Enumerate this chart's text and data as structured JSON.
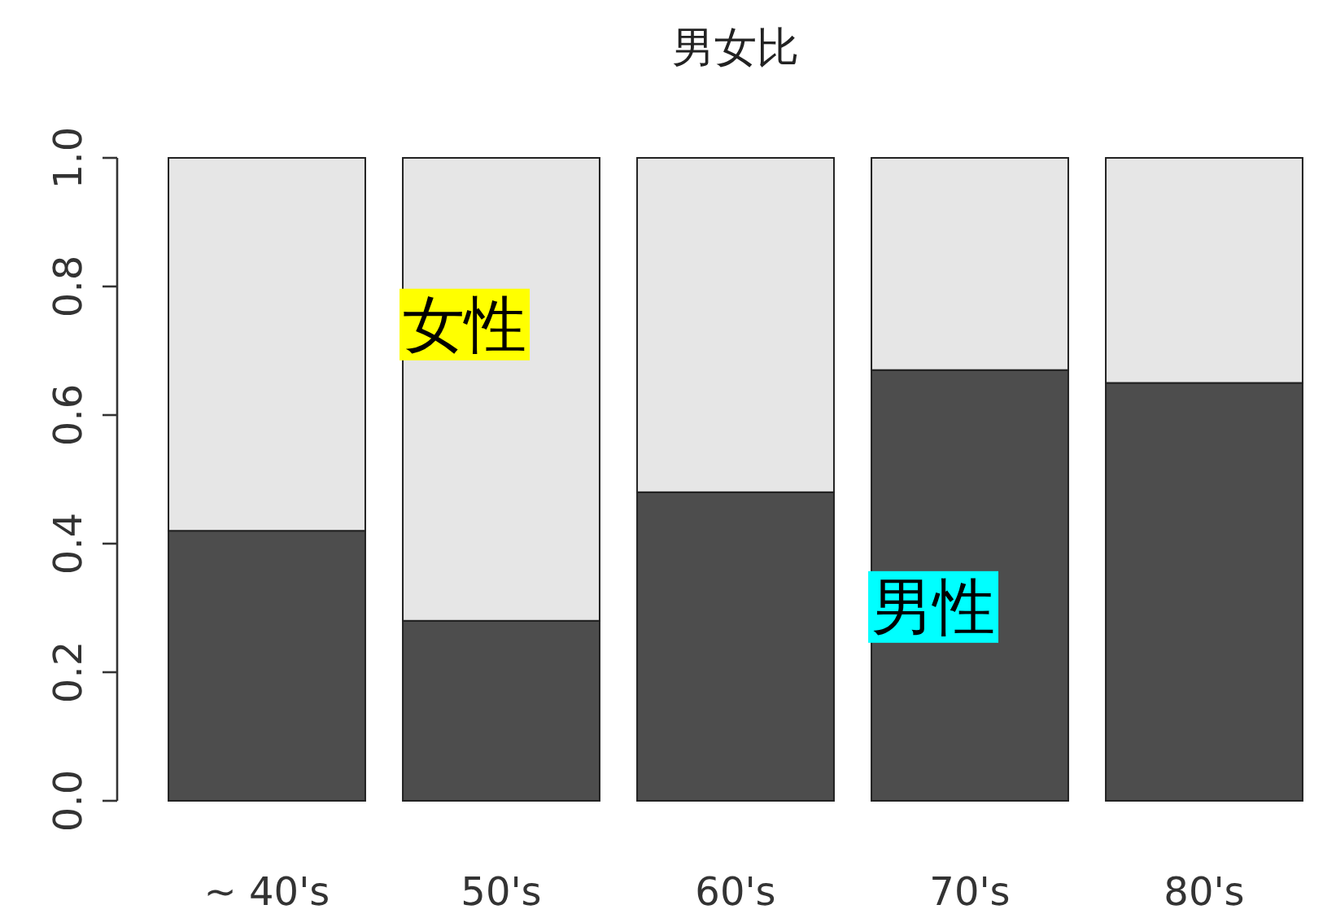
{
  "chart_data": {
    "type": "bar",
    "title": "男女比",
    "categories": [
      "~ 40's",
      "50's",
      "60's",
      "70's",
      "80's"
    ],
    "stacked": true,
    "series": [
      {
        "name": "男性",
        "color": "#4d4d4d",
        "values": [
          0.42,
          0.28,
          0.48,
          0.67,
          0.65
        ]
      },
      {
        "name": "女性",
        "color": "#e6e6e6",
        "values": [
          0.58,
          0.72,
          0.52,
          0.33,
          0.35
        ]
      }
    ],
    "ylim": [
      0,
      1
    ],
    "yticks": [
      {
        "value": 0,
        "label": "0.0"
      },
      {
        "value": 0.2,
        "label": "0.2"
      },
      {
        "value": 0.4,
        "label": "0.4"
      },
      {
        "value": 0.6,
        "label": "0.6"
      },
      {
        "value": 0.8,
        "label": "0.8"
      },
      {
        "value": 1,
        "label": "1.0"
      }
    ]
  }
}
